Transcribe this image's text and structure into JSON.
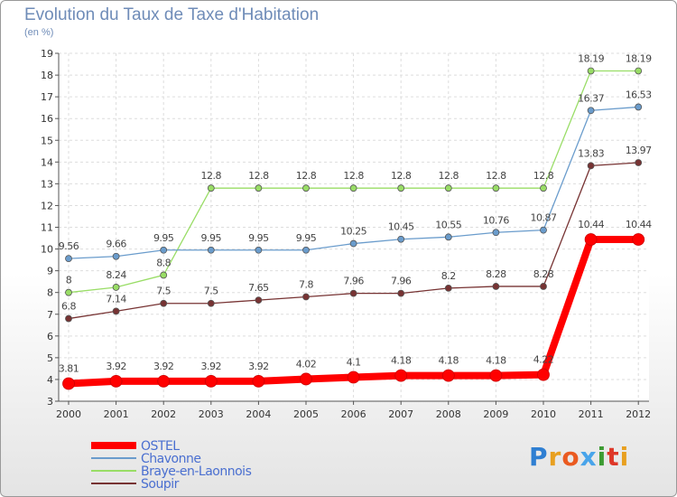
{
  "title": "Evolution du Taux de Taxe d'Habitation",
  "subtitle": "(en %)",
  "logo": {
    "text": "Proxiti",
    "colors": [
      "#2f7fd2",
      "#e8a020",
      "#ea5a20",
      "#49a4ea",
      "#3c9b32",
      "#de3728",
      "#e8a020"
    ]
  },
  "chart_data": {
    "type": "line",
    "x": [
      "2000",
      "2001",
      "2002",
      "2003",
      "2004",
      "2005",
      "2006",
      "2007",
      "2008",
      "2009",
      "2010",
      "2011",
      "2012"
    ],
    "ylim": [
      3,
      19
    ],
    "yticks": [
      3,
      4,
      5,
      6,
      7,
      8,
      9,
      10,
      11,
      12,
      13,
      14,
      15,
      16,
      17,
      18,
      19
    ],
    "grid": true,
    "legend": "bottom-left",
    "series": [
      {
        "name": "OSTEL",
        "color": "#ff0000",
        "values": [
          3.81,
          3.92,
          3.92,
          3.92,
          3.92,
          4.02,
          4.1,
          4.18,
          4.18,
          4.18,
          4.22,
          10.44,
          10.44
        ],
        "labels": [
          "3.81",
          "3.92",
          "3.92",
          "3.92",
          "3.92",
          "4.02",
          "4.1",
          "4.18",
          "4.18",
          "4.18",
          "4.22",
          "10.44",
          "10.44"
        ]
      },
      {
        "name": "Chavonne",
        "color": "#6a9ccc",
        "values": [
          9.56,
          9.66,
          9.95,
          9.95,
          9.95,
          9.95,
          10.25,
          10.45,
          10.55,
          10.76,
          10.87,
          16.37,
          16.53
        ],
        "labels": [
          "9.56",
          "9.66",
          "9.95",
          "9.95",
          "9.95",
          "9.95",
          "10.25",
          "10.45",
          "10.55",
          "10.76",
          "10.87",
          "16.37",
          "16.53"
        ]
      },
      {
        "name": "Braye-en-Laonnois",
        "color": "#99dd66",
        "values": [
          8,
          8.24,
          8.8,
          12.8,
          12.8,
          12.8,
          12.8,
          12.8,
          12.8,
          12.8,
          12.8,
          18.19,
          18.19
        ],
        "labels": [
          "8",
          "8.24",
          "8.8",
          "12.8",
          "12.8",
          "12.8",
          "12.8",
          "12.8",
          "12.8",
          "12.8",
          "12.8",
          "18.19",
          "18.19"
        ]
      },
      {
        "name": "Soupir",
        "color": "#773333",
        "values": [
          6.8,
          7.14,
          7.5,
          7.5,
          7.65,
          7.8,
          7.96,
          7.96,
          8.2,
          8.28,
          8.28,
          13.83,
          13.97
        ],
        "labels": [
          "6.8",
          "7.14",
          "7.5",
          "7.5",
          "7.65",
          "7.8",
          "7.96",
          "7.96",
          "8.2",
          "8.28",
          "8.28",
          "13.83",
          "13.97"
        ]
      }
    ]
  }
}
